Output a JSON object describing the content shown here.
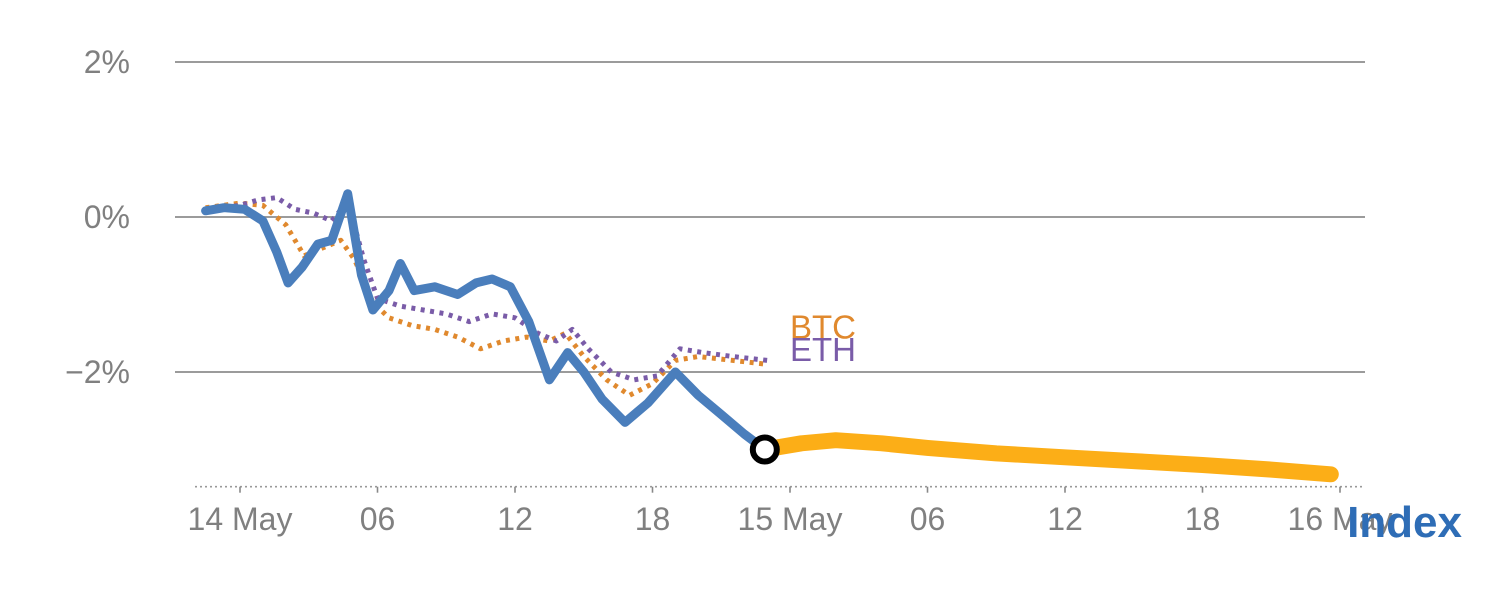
{
  "chart_data": {
    "type": "line",
    "title": "",
    "xlabel": "",
    "ylabel": "",
    "grid": true,
    "ylim": [
      -3.5,
      2.6
    ],
    "xlim_hours": [
      -2,
      49
    ],
    "y_ticks": [
      {
        "label": "2%",
        "value": 2
      },
      {
        "label": "0%",
        "value": 0
      },
      {
        "label": "−2%",
        "value": -2
      }
    ],
    "x_ticks": [
      {
        "label": "14 May",
        "hour": 0
      },
      {
        "label": "06",
        "hour": 6
      },
      {
        "label": "12",
        "hour": 12
      },
      {
        "label": "18",
        "hour": 18
      },
      {
        "label": "15 May",
        "hour": 24
      },
      {
        "label": "06",
        "hour": 30
      },
      {
        "label": "12",
        "hour": 36
      },
      {
        "label": "18",
        "hour": 42
      },
      {
        "label": "16 May",
        "hour": 48
      }
    ],
    "baseline_value": -3.48,
    "colors": {
      "index": "#4a7ebc",
      "btc": "#e0892e",
      "eth": "#7a5ca8",
      "forecast": "#fcae17",
      "grid": "#9b9b9b",
      "tick_text": "#808080",
      "index_label": "#2e6db6"
    },
    "series": [
      {
        "name": "BTC",
        "style": "dotted",
        "color": "#e0892e",
        "width": 5,
        "points": [
          [
            -1.5,
            0.12
          ],
          [
            0,
            0.18
          ],
          [
            1,
            0.15
          ],
          [
            2,
            -0.1
          ],
          [
            2.8,
            -0.5
          ],
          [
            3.6,
            -0.4
          ],
          [
            4.4,
            -0.3
          ],
          [
            5.0,
            -0.55
          ],
          [
            5.8,
            -1.1
          ],
          [
            6.5,
            -1.3
          ],
          [
            7.5,
            -1.4
          ],
          [
            8.5,
            -1.45
          ],
          [
            9.5,
            -1.55
          ],
          [
            10.5,
            -1.7
          ],
          [
            11.5,
            -1.6
          ],
          [
            12.5,
            -1.55
          ],
          [
            13.5,
            -1.6
          ],
          [
            14.2,
            -1.5
          ],
          [
            15.0,
            -1.8
          ],
          [
            16.0,
            -2.1
          ],
          [
            17.0,
            -2.3
          ],
          [
            18.0,
            -2.15
          ],
          [
            19.0,
            -1.85
          ],
          [
            20.0,
            -1.8
          ],
          [
            21.5,
            -1.85
          ],
          [
            23.0,
            -1.9
          ]
        ]
      },
      {
        "name": "ETH",
        "style": "dotted",
        "color": "#7a5ca8",
        "width": 5,
        "points": [
          [
            -1.5,
            0.1
          ],
          [
            0,
            0.15
          ],
          [
            0.8,
            0.22
          ],
          [
            1.6,
            0.25
          ],
          [
            2.4,
            0.1
          ],
          [
            3.2,
            0.05
          ],
          [
            4.0,
            -0.05
          ],
          [
            4.7,
            0.2
          ],
          [
            5.4,
            -0.55
          ],
          [
            6.0,
            -1.05
          ],
          [
            7.0,
            -1.15
          ],
          [
            8.0,
            -1.2
          ],
          [
            9.0,
            -1.25
          ],
          [
            10.0,
            -1.35
          ],
          [
            11.0,
            -1.25
          ],
          [
            12.0,
            -1.3
          ],
          [
            13.0,
            -1.5
          ],
          [
            13.8,
            -1.6
          ],
          [
            14.5,
            -1.45
          ],
          [
            15.2,
            -1.7
          ],
          [
            16.2,
            -2.0
          ],
          [
            17.2,
            -2.1
          ],
          [
            18.2,
            -2.05
          ],
          [
            19.2,
            -1.7
          ],
          [
            20.2,
            -1.75
          ],
          [
            21.5,
            -1.8
          ],
          [
            23.0,
            -1.85
          ]
        ]
      },
      {
        "name": "Index",
        "style": "solid",
        "color": "#4a7ebc",
        "width": 9,
        "points": [
          [
            -1.5,
            0.08
          ],
          [
            -0.7,
            0.12
          ],
          [
            0.2,
            0.1
          ],
          [
            1.0,
            -0.05
          ],
          [
            1.6,
            -0.45
          ],
          [
            2.1,
            -0.85
          ],
          [
            2.7,
            -0.65
          ],
          [
            3.4,
            -0.35
          ],
          [
            4.0,
            -0.3
          ],
          [
            4.7,
            0.3
          ],
          [
            5.3,
            -0.75
          ],
          [
            5.8,
            -1.2
          ],
          [
            6.5,
            -0.95
          ],
          [
            7.0,
            -0.6
          ],
          [
            7.6,
            -0.95
          ],
          [
            8.5,
            -0.9
          ],
          [
            9.5,
            -1.0
          ],
          [
            10.3,
            -0.85
          ],
          [
            11.0,
            -0.8
          ],
          [
            11.8,
            -0.9
          ],
          [
            12.6,
            -1.35
          ],
          [
            13.5,
            -2.1
          ],
          [
            14.3,
            -1.75
          ],
          [
            15.0,
            -2.0
          ],
          [
            15.8,
            -2.35
          ],
          [
            16.8,
            -2.65
          ],
          [
            17.8,
            -2.4
          ],
          [
            19.0,
            -2.0
          ],
          [
            20.0,
            -2.3
          ],
          [
            21.0,
            -2.55
          ],
          [
            22.0,
            -2.8
          ],
          [
            22.9,
            -3.0
          ]
        ]
      },
      {
        "name": "Index forecast",
        "style": "band",
        "color": "#fcae17",
        "width": 16,
        "points": [
          [
            22.9,
            -3.0
          ],
          [
            24.5,
            -2.92
          ],
          [
            26.0,
            -2.88
          ],
          [
            28.0,
            -2.92
          ],
          [
            30.0,
            -2.98
          ],
          [
            33.0,
            -3.05
          ],
          [
            36.0,
            -3.1
          ],
          [
            39.0,
            -3.15
          ],
          [
            42.0,
            -3.2
          ],
          [
            45.0,
            -3.26
          ],
          [
            47.6,
            -3.32
          ]
        ]
      }
    ],
    "marker": {
      "hour": 22.9,
      "value": -3.0,
      "style": "black-ring",
      "fill": "#ffffff"
    },
    "annotations": [
      {
        "id": "btc-label",
        "text": "BTC",
        "color": "#e0892e",
        "hour": 24.0,
        "value": -1.57,
        "size": 33,
        "bold": false
      },
      {
        "id": "eth-label",
        "text": "ETH",
        "color": "#7a5ca8",
        "hour": 24.0,
        "value": -1.86,
        "size": 33,
        "bold": false
      },
      {
        "id": "index-label",
        "text": "Index",
        "color": "#2e6db6",
        "position": "bottom-right",
        "size": 44,
        "bold": true
      }
    ],
    "legend_position": "inline-annotations"
  }
}
